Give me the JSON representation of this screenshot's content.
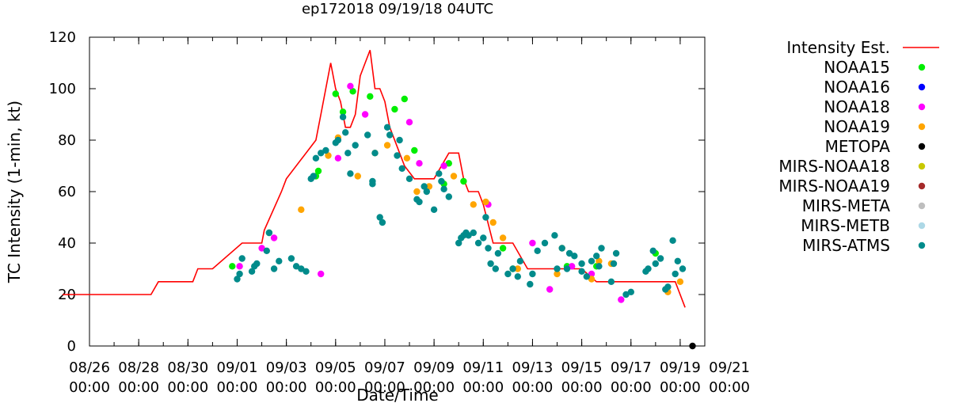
{
  "chart_data": {
    "type": "scatter",
    "title": "ep172018 09/19/18 04UTC",
    "xlabel": "Date/Time",
    "ylabel": "TC Intensity (1-min, kt)",
    "x_unit": "day of September 2018",
    "xlim": [
      -4,
      21
    ],
    "ylim": [
      0,
      120
    ],
    "grid": false,
    "legend_position": "right",
    "x_ticks": [
      {
        "value": -4,
        "line1": "08/26",
        "line2": "00:00"
      },
      {
        "value": -2,
        "line1": "08/28",
        "line2": "00:00"
      },
      {
        "value": 0,
        "line1": "08/30",
        "line2": "00:00"
      },
      {
        "value": 2,
        "line1": "09/01",
        "line2": "00:00"
      },
      {
        "value": 4,
        "line1": "09/03",
        "line2": "00:00"
      },
      {
        "value": 6,
        "line1": "09/05",
        "line2": "00:00"
      },
      {
        "value": 8,
        "line1": "09/07",
        "line2": "00:00"
      },
      {
        "value": 10,
        "line1": "09/09",
        "line2": "00:00"
      },
      {
        "value": 12,
        "line1": "09/11",
        "line2": "00:00"
      },
      {
        "value": 14,
        "line1": "09/13",
        "line2": "00:00"
      },
      {
        "value": 16,
        "line1": "09/15",
        "line2": "00:00"
      },
      {
        "value": 18,
        "line1": "09/17",
        "line2": "00:00"
      },
      {
        "value": 20,
        "line1": "09/19",
        "line2": "00:00"
      },
      {
        "value": 22,
        "line1": "09/21",
        "line2": "00:00"
      }
    ],
    "y_ticks": [
      {
        "value": 0,
        "label": "0"
      },
      {
        "value": 20,
        "label": "20"
      },
      {
        "value": 40,
        "label": "40"
      },
      {
        "value": 60,
        "label": "60"
      },
      {
        "value": 80,
        "label": "80"
      },
      {
        "value": 100,
        "label": "100"
      },
      {
        "value": 120,
        "label": "120"
      }
    ],
    "legend": [
      {
        "name": "Intensity Est.",
        "color": "#ff0000",
        "marker": "line"
      },
      {
        "name": "NOAA15",
        "color": "#00ee00",
        "marker": "dot"
      },
      {
        "name": "NOAA16",
        "color": "#0000ff",
        "marker": "dot"
      },
      {
        "name": "NOAA18",
        "color": "#ff00ff",
        "marker": "dot"
      },
      {
        "name": "NOAA19",
        "color": "#ffa500",
        "marker": "dot"
      },
      {
        "name": "METOPA",
        "color": "#000000",
        "marker": "dot"
      },
      {
        "name": "MIRS-NOAA18",
        "color": "#c8c800",
        "marker": "dot"
      },
      {
        "name": "MIRS-NOAA19",
        "color": "#a52a2a",
        "marker": "dot"
      },
      {
        "name": "MIRS-META",
        "color": "#bebebe",
        "marker": "dot"
      },
      {
        "name": "MIRS-METB",
        "color": "#add8e6",
        "marker": "dot"
      },
      {
        "name": "MIRS-ATMS",
        "color": "#008b8b",
        "marker": "dot"
      }
    ],
    "series": [
      {
        "name": "Intensity Est.",
        "color": "#ff0000",
        "style": "line",
        "x": [
          -5.1,
          -1.5,
          -1.2,
          0.2,
          0.4,
          1.0,
          2.2,
          3.0,
          3.1,
          3.8,
          4.0,
          5.2,
          5.4,
          5.6,
          5.8,
          6.0,
          6.2,
          6.4,
          6.6,
          6.8,
          7.0,
          7.2,
          7.4,
          7.6,
          7.8,
          8.0,
          8.2,
          8.6,
          8.8,
          9.2,
          9.6,
          10.0,
          10.6,
          11.0,
          11.2,
          11.4,
          11.8,
          12.0,
          12.4,
          13.2,
          13.8,
          14.0,
          16.0,
          16.6,
          19.8,
          20.2
        ],
        "y": [
          20,
          20,
          25,
          25,
          30,
          30,
          40,
          40,
          45,
          60,
          65,
          80,
          90,
          100,
          110,
          100,
          95,
          85,
          85,
          90,
          105,
          110,
          115,
          100,
          100,
          95,
          85,
          75,
          70,
          65,
          65,
          65,
          75,
          75,
          65,
          60,
          60,
          55,
          40,
          40,
          30,
          30,
          30,
          25,
          25,
          15
        ]
      },
      {
        "name": "NOAA15",
        "color": "#00ee00",
        "style": "dot",
        "x": [
          1.8,
          3.3,
          5.2,
          5.3,
          6.0,
          6.3,
          6.7,
          7.4,
          8.4,
          8.8,
          9.2,
          10.4,
          10.6,
          11.2,
          12.8,
          13.2,
          15.4,
          16.6,
          19.0
        ],
        "y": [
          31,
          44,
          66,
          68,
          98,
          91,
          99,
          97,
          92,
          96,
          76,
          63,
          71,
          64,
          38,
          30,
          31,
          31,
          36
        ]
      },
      {
        "name": "NOAA16",
        "color": "#0000ff",
        "style": "dot",
        "x": [],
        "y": []
      },
      {
        "name": "NOAA18",
        "color": "#ff00ff",
        "style": "dot",
        "x": [
          2.1,
          3.0,
          3.5,
          5.4,
          6.1,
          6.6,
          7.2,
          9.0,
          9.4,
          10.4,
          12.2,
          14.0,
          14.7,
          15.6,
          16.4,
          17.6
        ],
        "y": [
          31,
          38,
          42,
          28,
          73,
          101,
          90,
          87,
          71,
          70,
          55,
          40,
          22,
          31,
          28,
          18
        ]
      },
      {
        "name": "NOAA19",
        "color": "#ffa500",
        "style": "dot",
        "x": [
          4.6,
          5.7,
          6.1,
          6.9,
          7.6,
          8.1,
          8.9,
          9.3,
          9.8,
          10.8,
          11.6,
          12.1,
          12.4,
          12.8,
          13.4,
          15.0,
          15.2,
          16.4,
          16.7,
          17.2,
          19.5,
          20.0
        ],
        "y": [
          53,
          74,
          81,
          66,
          75,
          78,
          73,
          60,
          62,
          66,
          55,
          56,
          48,
          42,
          30,
          28,
          38,
          26,
          33,
          32,
          21,
          25
        ]
      },
      {
        "name": "METOPA",
        "color": "#000000",
        "style": "dot",
        "x": [
          20.5
        ],
        "y": [
          0
        ]
      },
      {
        "name": "MIRS-NOAA18",
        "color": "#c8c800",
        "style": "dot",
        "x": [],
        "y": []
      },
      {
        "name": "MIRS-NOAA19",
        "color": "#a52a2a",
        "style": "dot",
        "x": [],
        "y": []
      },
      {
        "name": "MIRS-META",
        "color": "#bebebe",
        "style": "dot",
        "x": [],
        "y": []
      },
      {
        "name": "MIRS-METB",
        "color": "#add8e6",
        "style": "dot",
        "x": [],
        "y": []
      },
      {
        "name": "MIRS-ATMS",
        "color": "#008b8b",
        "style": "dot",
        "x": [
          2.0,
          2.1,
          2.2,
          2.6,
          2.7,
          2.8,
          3.2,
          3.3,
          3.5,
          3.7,
          4.2,
          4.4,
          4.6,
          4.8,
          5.0,
          5.1,
          5.2,
          5.4,
          5.6,
          6.0,
          6.1,
          6.3,
          6.4,
          6.5,
          6.6,
          6.8,
          7.3,
          7.5,
          7.5,
          7.6,
          7.8,
          7.9,
          8.1,
          8.2,
          8.5,
          8.6,
          8.7,
          9.0,
          9.3,
          9.4,
          9.6,
          9.7,
          10.0,
          10.2,
          10.3,
          10.4,
          10.6,
          11.0,
          11.1,
          11.2,
          11.3,
          11.4,
          11.6,
          11.8,
          12.0,
          12.1,
          12.2,
          12.3,
          12.5,
          12.6,
          13.0,
          13.2,
          13.4,
          13.5,
          13.9,
          14.0,
          14.2,
          14.5,
          14.9,
          15.0,
          15.2,
          15.4,
          15.5,
          15.7,
          16.0,
          16.0,
          16.2,
          16.4,
          16.6,
          16.7,
          16.8,
          17.2,
          17.3,
          17.4,
          17.8,
          18.0,
          18.6,
          18.7,
          18.9,
          19.0,
          19.2,
          19.4,
          19.5,
          19.7,
          19.8,
          19.9,
          20.1
        ],
        "y": [
          26,
          28,
          34,
          29,
          31,
          32,
          37,
          44,
          30,
          33,
          34,
          31,
          30,
          29,
          65,
          66,
          73,
          75,
          76,
          79,
          80,
          89,
          83,
          75,
          67,
          78,
          82,
          63,
          64,
          75,
          50,
          48,
          85,
          82,
          74,
          80,
          69,
          65,
          57,
          56,
          62,
          60,
          53,
          67,
          64,
          61,
          58,
          40,
          42,
          43,
          44,
          43,
          44,
          40,
          42,
          50,
          38,
          32,
          30,
          36,
          28,
          30,
          27,
          33,
          24,
          28,
          37,
          40,
          43,
          30,
          38,
          30,
          36,
          35,
          32,
          29,
          27,
          33,
          35,
          31,
          38,
          25,
          32,
          36,
          20,
          21,
          29,
          30,
          37,
          32,
          34,
          22,
          23,
          41,
          28,
          33,
          30
        ]
      }
    ]
  }
}
